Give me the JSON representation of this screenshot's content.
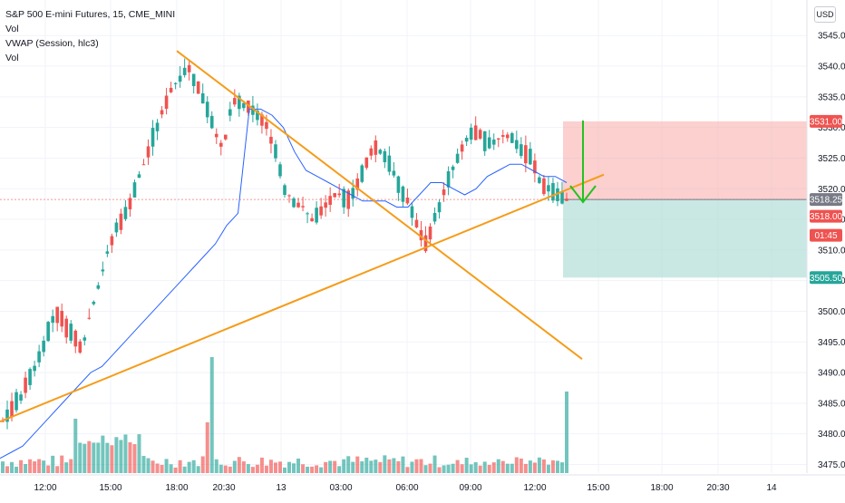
{
  "legend": {
    "symbol": "S&P 500 E-mini Futures, 15, CME_MINI",
    "ind1": "Vol",
    "ind2": "VWAP (Session, hlc3)",
    "ind3": "Vol"
  },
  "currency": "USD",
  "price_tags": {
    "target_high": "3531.00",
    "entry": "3518.25",
    "current": "3518.00",
    "countdown": "01:45",
    "target_low": "3505.50"
  },
  "colors": {
    "up": "#26a69a",
    "down": "#ef5350",
    "vwap": "#2962ff",
    "trendline": "#f59c1a",
    "arrow": "#22c222",
    "stop_zone": "#f7a9a8",
    "target_zone": "#9fd6cc"
  },
  "chart_data": {
    "type": "candlestick",
    "title": "S&P 500 E-mini Futures, 15, CME_MINI",
    "ylim": [
      3470,
      3546
    ],
    "yticks": [
      3475,
      3480,
      3485,
      3490,
      3495,
      3500,
      3505,
      3510,
      3515,
      3520,
      3525,
      3530,
      3535,
      3540,
      3545
    ],
    "xticks": [
      "12:00",
      "15:00",
      "18:00",
      "20:30",
      "13",
      "03:00",
      "06:00",
      "09:00",
      "12:00",
      "15:00",
      "18:00",
      "20:30",
      "14"
    ],
    "grid": true,
    "price_path": [
      3482,
      3484,
      3486,
      3489,
      3492,
      3496,
      3500,
      3498,
      3496,
      3494,
      3500,
      3505,
      3510,
      3514,
      3516,
      3520,
      3524,
      3528,
      3532,
      3536,
      3538,
      3540,
      3537,
      3534,
      3530,
      3526,
      3534,
      3534,
      3533,
      3532,
      3530,
      3526,
      3520,
      3518,
      3517,
      3515,
      3516,
      3518,
      3519,
      3518,
      3520,
      3523,
      3527,
      3526,
      3524,
      3520,
      3518,
      3514,
      3511,
      3515,
      3519,
      3523,
      3526,
      3529,
      3529,
      3527,
      3528,
      3529,
      3528,
      3526,
      3525,
      3521,
      3520,
      3519,
      3518
    ],
    "vwap_path": [
      3476,
      3477,
      3478,
      3480,
      3482,
      3484,
      3486,
      3488,
      3490,
      3491,
      3493,
      3495,
      3497,
      3499,
      3501,
      3503,
      3505,
      3507,
      3509,
      3511,
      3514,
      3516,
      3533,
      3533,
      3532,
      3530,
      3526,
      3523,
      3522,
      3521,
      3520,
      3519,
      3518,
      3518,
      3518,
      3517,
      3517,
      3519,
      3521,
      3521,
      3520,
      3519,
      3520,
      3522,
      3523,
      3524,
      3524,
      3523,
      3522,
      3522,
      3521
    ],
    "volume_highlights": [
      3492,
      3488,
      3486,
      3484
    ],
    "trendlines": [
      {
        "name": "descending",
        "from": [
          3542.5,
          0.207
        ],
        "to": [
          3492.2,
          0.688
        ]
      },
      {
        "name": "ascending",
        "from": [
          3482.0,
          0.0
        ],
        "to": [
          3522.3,
          0.714
        ]
      }
    ],
    "position": {
      "side": "short",
      "entry": 3518.25,
      "stop": 3531.0,
      "target": 3505.5
    }
  }
}
